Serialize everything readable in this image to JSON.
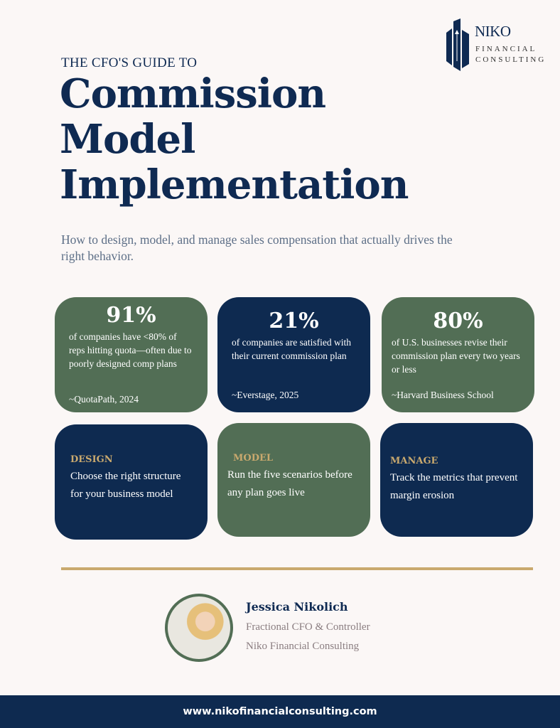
{
  "logo": {
    "name": "NIKO",
    "line1": "FINANCIAL",
    "line2": "CONSULTING"
  },
  "header": {
    "kicker": "THE CFO'S GUIDE TO",
    "title_lines": [
      "Commission",
      "Model",
      "Implementation"
    ],
    "subtitle": "How to design, model, and manage sales compensation that actually drives the right behavior."
  },
  "stats": [
    {
      "value": "91%",
      "text": "of companies have <80% of reps hitting quota—often due to poorly designed comp plans",
      "source": "~QuotaPath, 2024"
    },
    {
      "value": "21%",
      "text": "of companies are satisfied with their current commission plan",
      "source": "~Everstage, 2025"
    },
    {
      "value": "80%",
      "text": "of U.S. businesses revise their commission plan every two years or less",
      "source": "~Harvard Business School"
    }
  ],
  "pillars": [
    {
      "label": "DESIGN",
      "text": "Choose the right structure for your business model"
    },
    {
      "label": "MODEL",
      "text": "Run the five scenarios before any plan goes live"
    },
    {
      "label": "MANAGE",
      "text": "Track the metrics that prevent margin erosion"
    }
  ],
  "author": {
    "name": "Jessica Nikolich",
    "role": "Fractional CFO & Controller",
    "company": "Niko Financial Consulting"
  },
  "footer": {
    "url": "www.nikofinancialconsulting.com"
  },
  "colors": {
    "navy": "#0e2a50",
    "green": "#526e55",
    "gold": "#c9a96e",
    "background": "#fbf7f6"
  }
}
